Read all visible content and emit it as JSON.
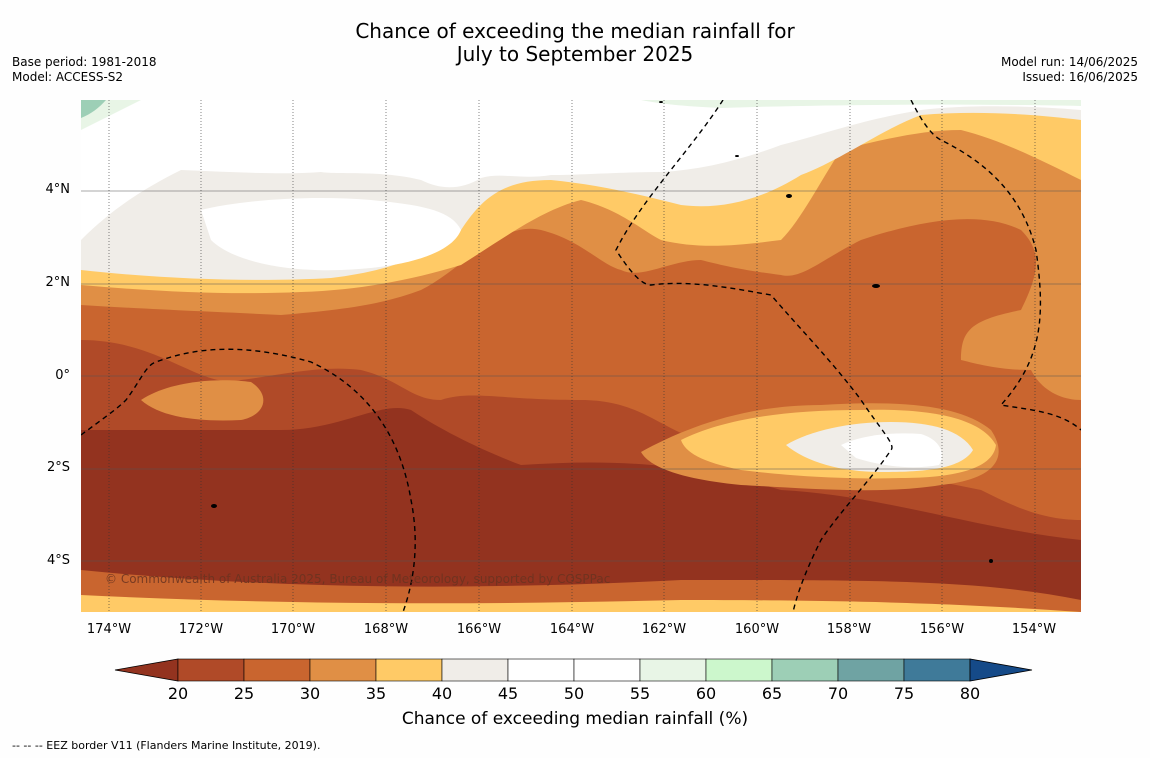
{
  "title_line1": "Chance of exceeding the median rainfall for",
  "title_line2": "July to September 2025",
  "base_period": "Base period: 1981-2018",
  "model": "Model: ACCESS-S2",
  "model_run": "Model run: 14/06/2025",
  "issued": "Issued: 16/06/2025",
  "copyright": "© Commonwealth of Australia 2025, Bureau of Meteorology, supported by COSPPac",
  "lat_ticks": [
    "4°N",
    "2°N",
    "0°",
    "2°S",
    "4°S"
  ],
  "lon_ticks": [
    "174°W",
    "172°W",
    "170°W",
    "168°W",
    "166°W",
    "164°W",
    "162°W",
    "160°W",
    "158°W",
    "156°W",
    "154°W"
  ],
  "colorbar": {
    "label": "Chance of exceeding median rainfall (%)",
    "ticks": [
      "20",
      "25",
      "30",
      "35",
      "40",
      "45",
      "50",
      "55",
      "60",
      "65",
      "70",
      "75",
      "80"
    ],
    "colors": [
      "#93331f",
      "#b04a28",
      "#c9652f",
      "#e08f45",
      "#ffca66",
      "#f0ede8",
      "#ffffff",
      "#ffffff",
      "#e8f5e6",
      "#ccf7cc",
      "#9dcfb6",
      "#6fa3a3",
      "#3f7a99",
      "#154a88"
    ]
  },
  "footnote": "--  --  -- EEZ border V11 (Flanders Marine Institute, 2019)."
}
